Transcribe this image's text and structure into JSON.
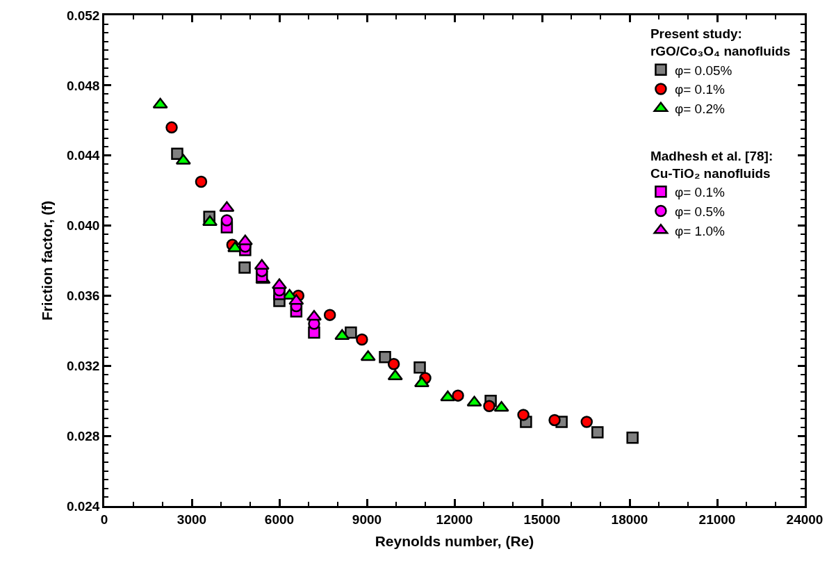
{
  "chart_data": {
    "type": "scatter",
    "xlabel": "Reynolds number, (Re)",
    "ylabel": "Friction factor, (f)",
    "xlim": [
      0,
      24000
    ],
    "xticks": [
      0,
      3000,
      6000,
      9000,
      12000,
      15000,
      18000,
      21000,
      24000
    ],
    "ylim": [
      0.024,
      0.052
    ],
    "yticks": [
      {
        "value": 0.024,
        "label": "0.024"
      },
      {
        "value": 0.028,
        "label": "0.028"
      },
      {
        "value": 0.032,
        "label": "0.032"
      },
      {
        "value": 0.036,
        "label": "0.036"
      },
      {
        "value": 0.04,
        "label": "0.040"
      },
      {
        "value": 0.044,
        "label": "0.044"
      },
      {
        "value": 0.048,
        "label": "0.048"
      },
      {
        "value": 0.052,
        "label": "0.052"
      }
    ],
    "legend": "top right",
    "legend_title": [
      "Present study:\nrGO/Co₃O₄ nanofluids",
      "Madhesh et al. [78]:\nCu-TiO₂ nanofluids"
    ],
    "series": [
      {
        "name": "φ= 0.05%",
        "color": "#808080",
        "marker": "square",
        "x": [
          2500,
          3600,
          4810,
          6000,
          8450,
          9620,
          10810,
          13240,
          14450,
          15670,
          16900,
          18100
        ],
        "values": [
          0.0441,
          0.0405,
          0.0376,
          0.0357,
          0.0339,
          0.0325,
          0.0319,
          0.03,
          0.0288,
          0.0288,
          0.0282,
          0.0279
        ]
      },
      {
        "name": "φ= 0.1%",
        "color": "#ff0000",
        "marker": "circle",
        "x": [
          2310,
          3320,
          4390,
          6650,
          7730,
          8830,
          9920,
          11000,
          12120,
          13190,
          14360,
          15430,
          16530
        ],
        "values": [
          0.0456,
          0.0425,
          0.0389,
          0.036,
          0.0349,
          0.0335,
          0.0321,
          0.0313,
          0.0303,
          0.0297,
          0.0292,
          0.0289,
          0.0288
        ]
      },
      {
        "name": "φ= 0.2%",
        "color": "#00ff00",
        "marker": "triangle",
        "x": [
          1920,
          2710,
          3620,
          4480,
          5440,
          6350,
          8150,
          9040,
          9970,
          10880,
          11770,
          12680,
          13610
        ],
        "values": [
          0.0469,
          0.0437,
          0.0402,
          0.0387,
          0.0369,
          0.036,
          0.0337,
          0.0325,
          0.0314,
          0.031,
          0.0302,
          0.0299,
          0.0296
        ]
      },
      {
        "name": "φ= 0.1%",
        "color": "#ff00ff",
        "marker": "square",
        "x": [
          4200,
          4830,
          5400,
          6000,
          6580,
          7190
        ],
        "values": [
          0.0399,
          0.0386,
          0.0371,
          0.0361,
          0.0351,
          0.0339
        ]
      },
      {
        "name": "φ= 0.5%",
        "color": "#ff00ff",
        "marker": "circle",
        "x": [
          4200,
          4830,
          5400,
          6000,
          6580,
          7190
        ],
        "values": [
          0.0403,
          0.0388,
          0.0374,
          0.0363,
          0.0354,
          0.0344
        ]
      },
      {
        "name": "φ= 1.0%",
        "color": "#ff00ff",
        "marker": "triangle",
        "x": [
          4200,
          4830,
          5400,
          6000,
          6580,
          7190
        ],
        "values": [
          0.041,
          0.0391,
          0.0377,
          0.0366,
          0.0357,
          0.0348
        ]
      }
    ]
  }
}
